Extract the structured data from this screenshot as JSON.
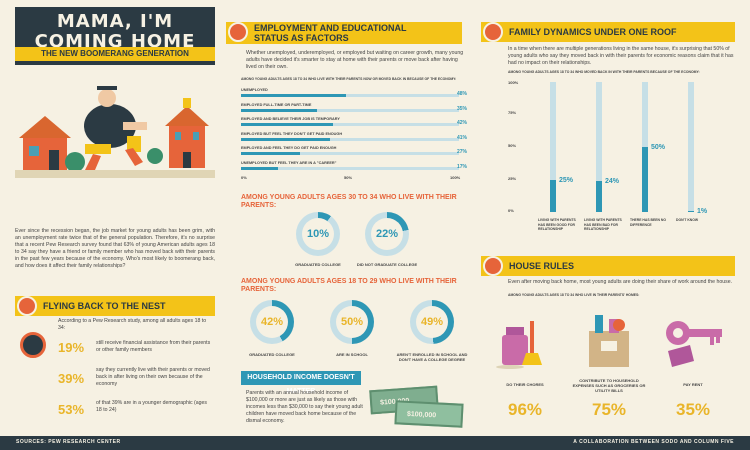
{
  "title": {
    "line1": "MAMA, I'M",
    "line2": "COMING HOME",
    "subtitle": "THE NEW BOOMERANG GENERATION"
  },
  "colors": {
    "accent": "#f3c318",
    "orange": "#e6643a",
    "teal": "#2e97b5",
    "dark": "#2b3a43",
    "bg": "#f6f1e3"
  },
  "intro": "Ever since the recession began, the job market for young adults has been grim, with an unemployment rate twice that of the general population. Therefore, it's no surprise that a recent Pew Research survey found that 63% of young American adults ages 18 to 34 say they have a friend or family member who has moved back with their parents in the past few years because of the economy. Who's most likely to boomerang back, and how does it affect their family relationships?",
  "nest": {
    "heading": "FLYING BACK TO THE NEST",
    "lead": "According to a Pew Research study, among all adults ages 18 to 34:",
    "stats": [
      {
        "value": "19%",
        "text": "still receive financial assistance from their parents or other family members"
      },
      {
        "value": "39%",
        "text": "say they currently live with their parents or moved back in after living on their own because of the economy"
      },
      {
        "value": "53%",
        "text": "of that 39% are in a younger demographic (ages 18 to 24)"
      }
    ]
  },
  "employment": {
    "heading_line1": "EMPLOYMENT AND EDUCATIONAL",
    "heading_line2": "STATUS AS FACTORS",
    "text": "Whether unemployed, underemployed, or employed but waiting on career growth, many young adults have decided it's smarter to stay at home with their parents or move back after having lived on their own.",
    "chart_caption": "AMONG YOUNG ADULTS AGES 18 TO 34 WHO LIVE WITH THEIR PARENTS NOW OR MOVED BACK IN BECAUSE OF THE ECONOMY:",
    "axis": [
      "0%",
      "50%",
      "100%"
    ]
  },
  "chart_data": [
    {
      "type": "bar",
      "categories": [
        "UNEMPLOYED",
        "EMPLOYED FULL-TIME OR PART-TIME",
        "EMPLOYED AND BELIEVE THEIR JOB IS TEMPORARY",
        "EMPLOYED BUT FEEL THEY DON'T GET PAID ENOUGH",
        "EMPLOYED AND FEEL THEY DO GET PAID ENOUGH",
        "UNEMPLOYED BUT FEEL THEY ARE IN A \"CAREER\""
      ],
      "values": [
        48,
        35,
        42,
        41,
        27,
        17
      ],
      "labels": [
        "48%",
        "35%",
        "42%",
        "41%",
        "27%",
        "17%"
      ],
      "xlim": [
        0,
        100
      ]
    },
    {
      "type": "bar",
      "categories": [
        "LIVING WITH PARENTS HAS BEEN GOOD FOR RELATIONSHIP",
        "LIVING WITH PARENTS HAS BEEN BAD FOR RELATIONSHIP",
        "THERE HAS BEEN NO DIFFERENCE",
        "DON'T KNOW"
      ],
      "values": [
        25,
        24,
        50,
        1
      ],
      "labels": [
        "25%",
        "24%",
        "50%",
        "1%"
      ],
      "ylim": [
        0,
        100
      ]
    }
  ],
  "age30": {
    "heading": "AMONG YOUNG ADULTS AGES 30 TO 34 WHO LIVE WITH THEIR PARENTS:",
    "items": [
      {
        "value": "10%",
        "label": "GRADUATED COLLEGE",
        "pct": 10
      },
      {
        "value": "22%",
        "label": "DID NOT GRADUATE COLLEGE",
        "pct": 22
      }
    ]
  },
  "age18": {
    "heading": "AMONG YOUNG ADULTS AGES 18 TO 29 WHO LIVE WITH THEIR PARENTS:",
    "items": [
      {
        "value": "42%",
        "label": "GRADUATED COLLEGE",
        "pct": 42
      },
      {
        "value": "50%",
        "label": "ARE IN SCHOOL",
        "pct": 50
      },
      {
        "value": "49%",
        "label": "AREN'T ENROLLED IN SCHOOL AND DON'T HAVE A COLLEGE DEGREE",
        "pct": 49
      }
    ]
  },
  "income": {
    "heading": "HOUSEHOLD INCOME DOESN'T MATTER",
    "text": "Parents with an annual household income of $100,000 or more are just as likely as those with incomes less than $30,000 to say their young adult children have moved back home because of the dismal economy.",
    "bill1": "$100,000",
    "bill2": "$100,000"
  },
  "family": {
    "heading": "FAMILY DYNAMICS UNDER ONE ROOF",
    "text": "In a time when there are multiple generations living in the same house, it's surprising that 50% of young adults who say they moved back in with their parents for economic reasons claim that it has had no impact on their relationships.",
    "caption": "AMONG YOUNG ADULTS AGES 18 TO 34 WHO MOVED BACK IN WITH THEIR PARENTS BECAUSE OF THE ECONOMY:",
    "yticks": [
      "100%",
      "75%",
      "50%",
      "25%",
      "0%"
    ]
  },
  "rules": {
    "heading": "HOUSE RULES",
    "text": "Even after moving back home, most young adults are doing their share of work around the house.",
    "caption": "AMONG YOUNG ADULTS AGES 18 TO 34 WHO LIVE IN THEIR PARENTS' HOMES:",
    "items": [
      {
        "label": "DO THEIR CHORES",
        "value": "96%"
      },
      {
        "label": "CONTRIBUTE TO HOUSEHOLD EXPENSES SUCH AS GROCERIES OR UTILITY BILLS",
        "value": "75%"
      },
      {
        "label": "PAY RENT",
        "value": "35%"
      }
    ]
  },
  "footer": {
    "left": "SOURCES: PEW RESEARCH CENTER",
    "right": "A COLLABORATION BETWEEN SODO AND COLUMN FIVE"
  }
}
